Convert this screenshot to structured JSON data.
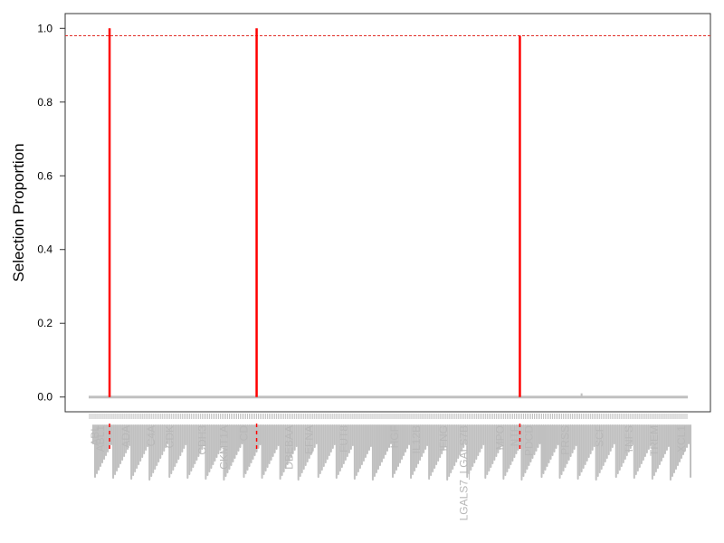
{
  "chart_data": {
    "type": "bar",
    "ylabel": "Selection Proportion",
    "xlabel": "",
    "ylim": [
      -0.04,
      1.04
    ],
    "yticks": [
      0.0,
      0.2,
      0.4,
      0.6,
      0.8,
      1.0
    ],
    "ytick_labels": [
      "0.0",
      "0.2",
      "0.4",
      "0.6",
      "0.8",
      "1.0"
    ],
    "threshold": 0.98,
    "threshold_color": "#e0302a",
    "selected_color": "#ff0000",
    "unselected_color": "#c0c0c0",
    "n_variables": 330,
    "selected": [
      {
        "index": 11,
        "value": 1.0
      },
      {
        "index": 92,
        "value": 1.0
      },
      {
        "index": 237,
        "value": 0.98
      }
    ],
    "minor": [
      {
        "index": 271,
        "value": 0.01
      }
    ],
    "visible_tick_labels": [
      {
        "index": 3,
        "label": "ABL"
      },
      {
        "index": 6,
        "label": "ABL1"
      },
      {
        "index": 20,
        "label": "ADA"
      },
      {
        "index": 34,
        "label": "C4A"
      },
      {
        "index": 44,
        "label": "CDK"
      },
      {
        "index": 62,
        "label": "CDH3"
      },
      {
        "index": 74,
        "label": "CKMT1A"
      },
      {
        "index": 85,
        "label": "CD"
      },
      {
        "index": 110,
        "label": "DBEBAA"
      },
      {
        "index": 121,
        "label": "EFNA"
      },
      {
        "index": 140,
        "label": "FUT8"
      },
      {
        "index": 168,
        "label": "HGF"
      },
      {
        "index": 180,
        "label": "IL12B"
      },
      {
        "index": 195,
        "label": "IFNG"
      },
      {
        "index": 206,
        "label": "LGALS7_LGALS7B"
      },
      {
        "index": 226,
        "label": "MPO"
      },
      {
        "index": 234,
        "label": "NTF"
      },
      {
        "index": 242,
        "label": "PDCD"
      },
      {
        "index": 262,
        "label": "PRSS"
      },
      {
        "index": 281,
        "label": "SCF"
      },
      {
        "index": 297,
        "label": "TNFS"
      },
      {
        "index": 311,
        "label": "TREM"
      },
      {
        "index": 326,
        "label": "XCL1"
      }
    ]
  }
}
